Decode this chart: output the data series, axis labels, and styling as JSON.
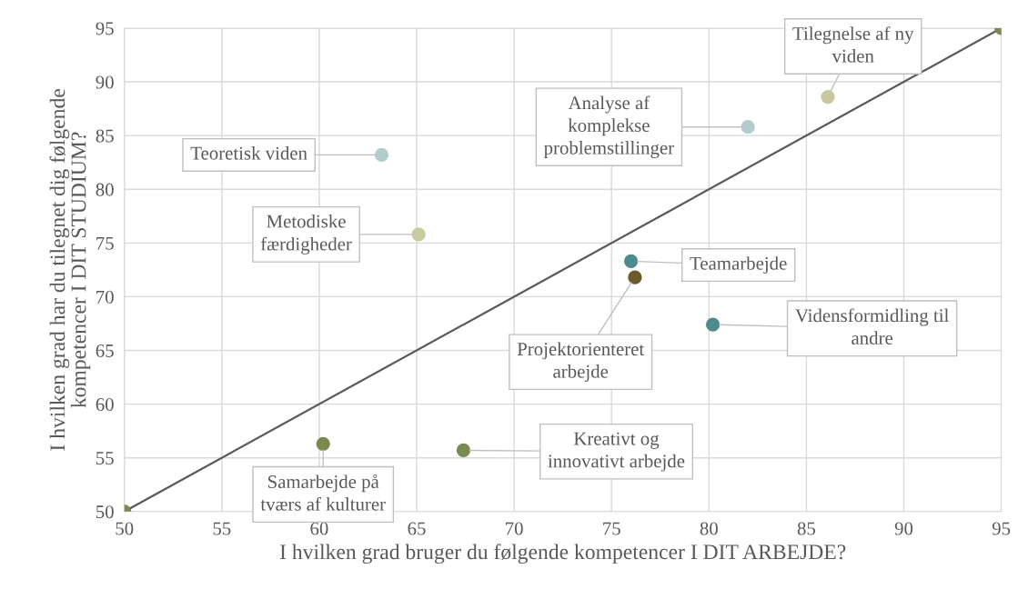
{
  "chart_data": {
    "type": "scatter",
    "xlabel": "I hvilken grad bruger du følgende kompetencer I DIT ARBEJDE?",
    "ylabel": "I hvilken grad har du tilegnet dig følgende\nkompetencer I DIT STUDIUM?",
    "xlim": [
      50,
      95
    ],
    "ylim": [
      50,
      95
    ],
    "xticks": [
      50,
      55,
      60,
      65,
      70,
      75,
      80,
      85,
      90,
      95
    ],
    "yticks": [
      50,
      55,
      60,
      65,
      70,
      75,
      80,
      85,
      90,
      95
    ],
    "grid": true,
    "legend": false,
    "marker": "circle",
    "series": [
      {
        "type": "line",
        "color": "#595959",
        "x": [
          50,
          95
        ],
        "values": [
          50,
          95
        ],
        "marker": "none",
        "line_style": "solid"
      },
      {
        "color": "#7a8a50",
        "x": [
          50,
          95
        ],
        "values": [
          50,
          95
        ]
      },
      {
        "name": "Teoretisk viden",
        "color": "#b4ccd0",
        "x": [
          63.2
        ],
        "values": [
          83.2
        ]
      },
      {
        "name": "Metodiske\nfærdigheder",
        "color": "#c8cca0",
        "x": [
          65.1
        ],
        "values": [
          75.8
        ]
      },
      {
        "name": "Analyse af\nkomplekse\nproblemstillinger",
        "color": "#b4ccd0",
        "x": [
          82.0
        ],
        "values": [
          85.8
        ]
      },
      {
        "name": "Tilegnelse af ny\nviden",
        "color": "#c8c8a0",
        "x": [
          86.1
        ],
        "values": [
          88.6
        ]
      },
      {
        "name": "Teamarbejde",
        "color": "#4e8a8e",
        "x": [
          76.0
        ],
        "values": [
          73.3
        ]
      },
      {
        "name": "Projektorienteret\narbejde",
        "color": "#6b5a2a",
        "x": [
          76.2
        ],
        "values": [
          71.8
        ]
      },
      {
        "name": "Vidensformidling til\nandre",
        "color": "#4e8a8e",
        "x": [
          80.2
        ],
        "values": [
          67.4
        ]
      },
      {
        "name": "Samarbejde på\ntværs af kulturer",
        "color": "#7a8a50",
        "x": [
          60.2
        ],
        "values": [
          56.3
        ]
      },
      {
        "name": "Kreativt og\ninnovativt arbejde",
        "color": "#7a8a50",
        "x": [
          67.4
        ],
        "values": [
          55.7
        ]
      }
    ]
  }
}
